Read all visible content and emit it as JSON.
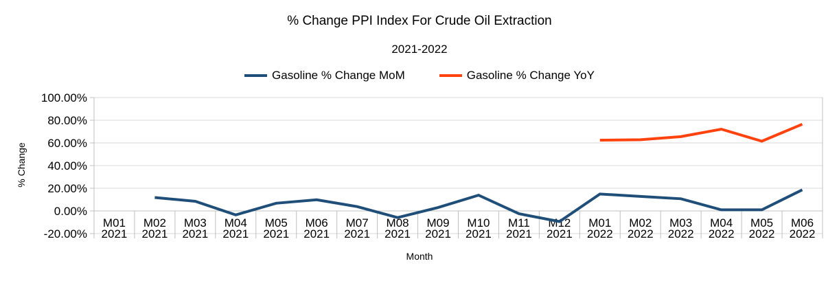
{
  "title": "% Change PPI Index For Crude Oil Extraction",
  "subtitle": "2021-2022",
  "chart_data": {
    "type": "line",
    "categories": [
      "M01 2021",
      "M02 2021",
      "M03 2021",
      "M04 2021",
      "M05 2021",
      "M06 2021",
      "M07 2021",
      "M08 2021",
      "M09 2021",
      "M10 2021",
      "M11 2021",
      "M12 2021",
      "M01 2022",
      "M02 2022",
      "M03 2022",
      "M04 2022",
      "M05 2022",
      "M06 2022"
    ],
    "series": [
      {
        "name": "Gasoline % Change MoM",
        "color": "#1f4e79",
        "values": [
          null,
          11.8,
          8.5,
          -3.5,
          6.8,
          9.8,
          3.8,
          -5.9,
          3.0,
          13.9,
          -2.5,
          -9.4,
          14.9,
          12.8,
          10.7,
          1.0,
          1.0,
          18.6
        ]
      },
      {
        "name": "Gasoline % Change YoY",
        "color": "#ff420e",
        "values": [
          null,
          null,
          null,
          null,
          null,
          null,
          null,
          null,
          null,
          null,
          null,
          null,
          62.4,
          62.8,
          65.5,
          72.1,
          61.5,
          76.5
        ]
      }
    ],
    "xlabel": "Month",
    "ylabel": "% Change",
    "ylim": [
      -20,
      100
    ],
    "ytick_step": 20,
    "ytick_labels": [
      "100.00%",
      "80.00%",
      "60.00%",
      "40.00%",
      "20.00%",
      "0.00%",
      "-20.00%"
    ],
    "grid": "horizontal",
    "legend_position": "top",
    "colors": {
      "gridline": "#d9d9d9",
      "axis": "#c0c0c0",
      "text": "#000000",
      "background": "#ffffff"
    }
  }
}
